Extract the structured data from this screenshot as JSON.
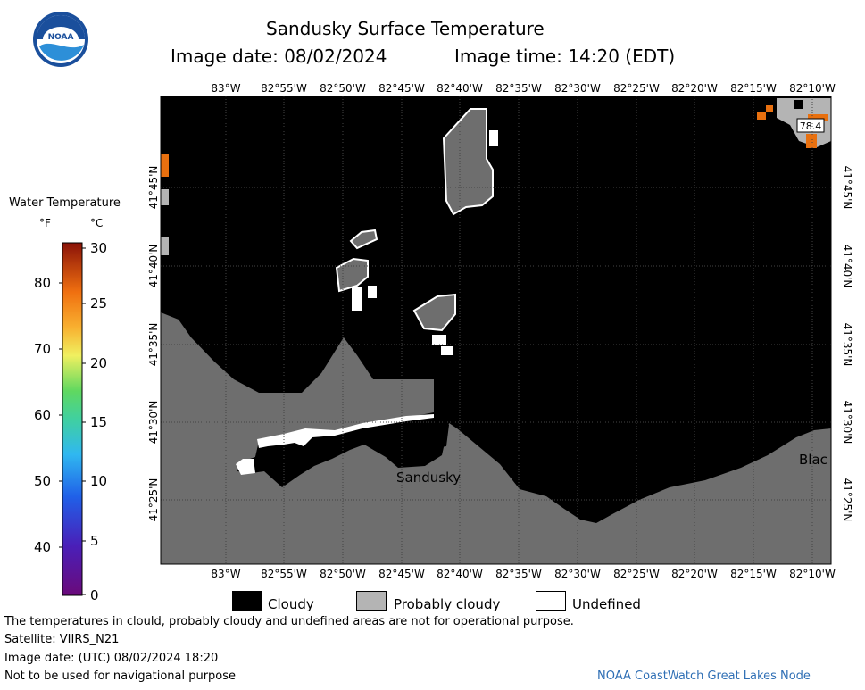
{
  "header": {
    "title": "Sandusky Surface Temperature",
    "image_date": "Image date: 08/02/2024",
    "image_time": "Image time: 14:20 (EDT)"
  },
  "logo": {
    "text": "NOAA"
  },
  "colorbar": {
    "title": "Water Temperature",
    "unit_f": "°F",
    "unit_c": "°C",
    "f_ticks": [
      "80",
      "70",
      "60",
      "50",
      "40"
    ],
    "c_ticks": [
      "30",
      "25",
      "20",
      "15",
      "10",
      "5",
      "0"
    ]
  },
  "map": {
    "lon_labels": [
      "83°W",
      "82°55'W",
      "82°50'W",
      "82°45'W",
      "82°40'W",
      "82°35'W",
      "82°30'W",
      "82°25'W",
      "82°20'W",
      "82°15'W",
      "82°10'W"
    ],
    "lat_labels": [
      "41°45'N",
      "41°40'N",
      "41°35'N",
      "41°30'N",
      "41°25'N"
    ],
    "place_sandusky": "Sandusky",
    "place_east": "Blac",
    "temp_reading": "78.4",
    "colors": {
      "cloudy": "#000000",
      "probably_cloudy": "#b4b4b4",
      "land": "#6e6e6e",
      "warm_water": "#e8700f"
    }
  },
  "legend": {
    "cloudy": "Cloudy",
    "probably_cloudy": "Probably cloudy",
    "undefined": "Undefined"
  },
  "footer": {
    "disclaimer": "The temperatures in clould, probably cloudy and undefined areas are not for operational purpose.",
    "satellite": "Satellite: VIIRS_N21",
    "utc_date": "Image date: (UTC) 08/02/2024   18:20",
    "nav_warning": "Not to be used for navigational purpose",
    "credit": "NOAA CoastWatch Great Lakes Node"
  }
}
